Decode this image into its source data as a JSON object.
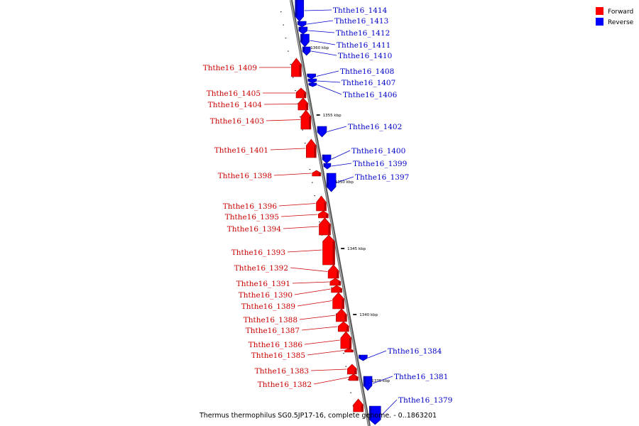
{
  "caption": "Thermus thermophilus SG0.5JP17-16, complete genome. - 0..1863201",
  "legend": {
    "forward": {
      "label": "Forward",
      "color": "#ff0000"
    },
    "reverse": {
      "label": "Reverse",
      "color": "#0000ff"
    }
  },
  "colors": {
    "axis": "#808080",
    "forward": "#ff0000",
    "reverse": "#0000ff",
    "forward_label": "#cc0000",
    "reverse_label": "#0000cc"
  },
  "ticks": [
    "1360 kbp",
    "1355 kbp",
    "1350 kbp",
    "1345 kbp",
    "1340 kbp",
    "1335 kbp"
  ],
  "genes_forward": [
    "Ththe16_1409",
    "Ththe16_1405",
    "Ththe16_1404",
    "Ththe16_1403",
    "Ththe16_1401",
    "Ththe16_1398",
    "Ththe16_1396",
    "Ththe16_1395",
    "Ththe16_1394",
    "Ththe16_1393",
    "Ththe16_1392",
    "Ththe16_1391",
    "Ththe16_1390",
    "Ththe16_1389",
    "Ththe16_1388",
    "Ththe16_1387",
    "Ththe16_1386",
    "Ththe16_1385",
    "Ththe16_1383",
    "Ththe16_1382"
  ],
  "genes_reverse": [
    "Ththe16_1414",
    "Ththe16_1413",
    "Ththe16_1412",
    "Ththe16_1411",
    "Ththe16_1410",
    "Ththe16_1408",
    "Ththe16_1407",
    "Ththe16_1406",
    "Ththe16_1402",
    "Ththe16_1400",
    "Ththe16_1399",
    "Ththe16_1397",
    "Ththe16_1384",
    "Ththe16_1381",
    "Ththe16_1379"
  ]
}
